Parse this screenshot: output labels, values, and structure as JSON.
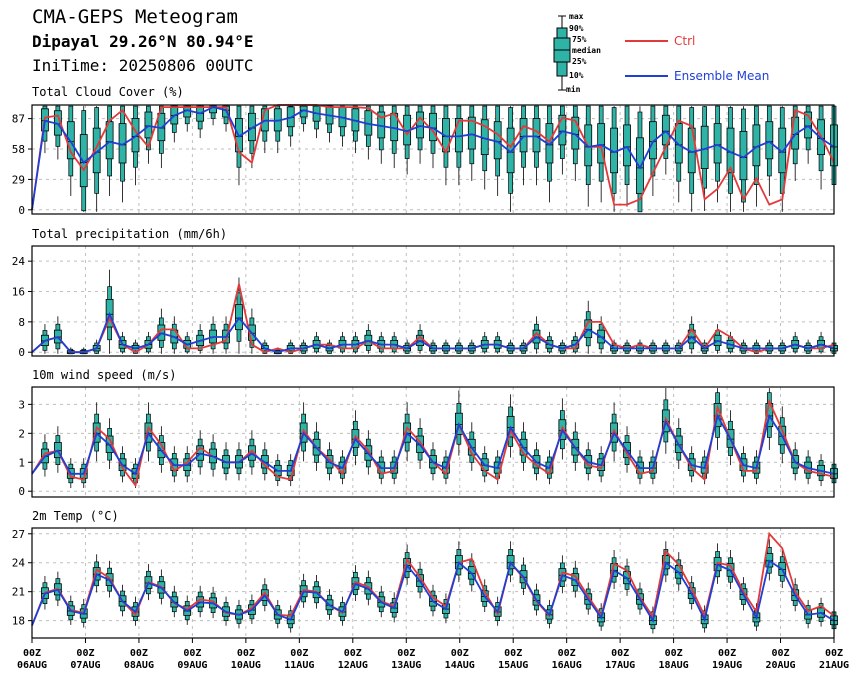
{
  "header": {
    "title": "CMA-GEPS Meteogram",
    "location": "Dipayal 29.26°N 80.94°E",
    "init_time": "IniTime: 20250806 00UTC"
  },
  "legend": {
    "box_labels": [
      "max",
      "90%",
      "75%",
      "median",
      "25%",
      "10%",
      "min"
    ],
    "series": [
      {
        "name": "Ctrl",
        "color": "#e23a3a"
      },
      {
        "name": "Ensemble Mean",
        "color": "#1f3fd6"
      }
    ]
  },
  "x_axis": {
    "hour_label": "00Z",
    "dates": [
      "06AUG",
      "07AUG",
      "08AUG",
      "09AUG",
      "10AUG",
      "11AUG",
      "12AUG",
      "13AUG",
      "14AUG",
      "15AUG",
      "16AUG",
      "17AUG",
      "18AUG",
      "19AUG",
      "20AUG",
      "21AUG"
    ]
  },
  "colors": {
    "box_fill": "#2fb3a7",
    "box_edge": "#000000",
    "grid": "#bfbfbf"
  },
  "chart_data": [
    {
      "type": "line",
      "title": "Total Cloud Cover (%)",
      "yticks": [
        0,
        29,
        58,
        87
      ],
      "ylim": [
        -4,
        100
      ],
      "ctrl": [
        0,
        88,
        90,
        55,
        38,
        60,
        85,
        95,
        75,
        60,
        98,
        98,
        98,
        98,
        98,
        98,
        55,
        45,
        95,
        100,
        100,
        100,
        100,
        98,
        98,
        98,
        97,
        88,
        92,
        72,
        88,
        75,
        55,
        85,
        85,
        80,
        72,
        60,
        80,
        75,
        65,
        88,
        85,
        60,
        60,
        5,
        5,
        10,
        35,
        60,
        85,
        80,
        10,
        20,
        40,
        10,
        30,
        5,
        10,
        95,
        90,
        70,
        45
      ],
      "mean": [
        0,
        85,
        82,
        65,
        45,
        55,
        65,
        62,
        70,
        80,
        78,
        90,
        95,
        92,
        98,
        95,
        70,
        78,
        85,
        85,
        88,
        95,
        92,
        90,
        88,
        85,
        82,
        80,
        78,
        75,
        80,
        78,
        70,
        70,
        72,
        68,
        65,
        55,
        70,
        70,
        62,
        75,
        72,
        60,
        62,
        55,
        60,
        40,
        65,
        75,
        62,
        55,
        58,
        62,
        55,
        50,
        60,
        65,
        55,
        72,
        80,
        68,
        60
      ],
      "box_series": "cloud"
    },
    {
      "type": "line",
      "title": "Total precipitation (mm/6h)",
      "yticks": [
        0,
        8,
        16,
        24
      ],
      "ylim": [
        -1,
        28
      ],
      "ctrl": [
        0,
        3,
        4,
        0,
        0,
        1,
        9,
        2,
        0,
        2,
        6,
        6,
        1,
        1,
        2,
        3,
        18,
        2,
        0,
        1,
        0,
        1,
        2,
        2,
        1,
        1,
        3,
        1,
        1,
        1,
        4,
        1,
        1,
        1,
        1,
        2,
        2,
        1,
        1,
        5,
        2,
        1,
        1,
        8,
        8,
        2,
        1,
        2,
        1,
        1,
        1,
        6,
        1,
        6,
        4,
        1,
        0,
        1,
        1,
        2,
        1,
        1,
        2
      ],
      "mean": [
        0,
        3,
        4,
        0,
        0,
        1,
        10,
        2,
        1,
        2,
        5,
        4,
        2,
        3,
        4,
        4,
        9,
        5,
        1,
        0,
        1,
        1,
        2,
        1,
        2,
        2,
        3,
        2,
        2,
        1,
        3,
        1,
        1,
        1,
        1,
        2,
        2,
        1,
        1,
        4,
        2,
        1,
        2,
        6,
        4,
        1,
        1,
        1,
        1,
        1,
        1,
        4,
        1,
        3,
        2,
        1,
        1,
        1,
        1,
        2,
        1,
        2,
        1
      ],
      "box_series": "precip"
    },
    {
      "type": "line",
      "title": "10m wind speed (m/s)",
      "yticks": [
        0,
        1,
        2,
        3
      ],
      "ylim": [
        -0.2,
        3.6
      ],
      "ctrl": [
        0.6,
        1.3,
        1.4,
        0.5,
        0.4,
        2.2,
        1.8,
        0.8,
        0.2,
        2.2,
        1.6,
        0.7,
        1.0,
        1.5,
        1.2,
        1.0,
        1.0,
        1.4,
        0.9,
        0.5,
        0.4,
        2.1,
        1.5,
        1.1,
        0.6,
        1.9,
        1.4,
        0.6,
        0.7,
        2.2,
        1.7,
        1.0,
        0.6,
        2.3,
        1.3,
        0.7,
        0.4,
        2.1,
        1.3,
        0.9,
        0.6,
        2.2,
        1.5,
        0.9,
        0.8,
        2.1,
        1.3,
        0.6,
        0.7,
        2.5,
        1.6,
        0.8,
        0.4,
        2.9,
        1.8,
        0.7,
        0.7,
        3.1,
        2.1,
        1.0,
        0.7,
        0.6,
        0.5
      ],
      "mean": [
        0.6,
        1.2,
        1.4,
        0.6,
        0.6,
        2.0,
        1.6,
        0.9,
        0.6,
        2.0,
        1.4,
        0.9,
        0.9,
        1.3,
        1.2,
        1.0,
        1.0,
        1.3,
        1.0,
        0.7,
        0.7,
        2.0,
        1.5,
        1.0,
        0.8,
        1.8,
        1.3,
        0.8,
        0.8,
        2.0,
        1.6,
        1.0,
        0.8,
        2.3,
        1.5,
        0.9,
        0.8,
        2.2,
        1.5,
        1.0,
        0.8,
        2.1,
        1.5,
        1.0,
        0.9,
        2.0,
        1.4,
        0.8,
        0.8,
        2.4,
        1.6,
        0.9,
        0.8,
        2.6,
        1.8,
        0.9,
        0.8,
        2.6,
        1.9,
        1.0,
        0.8,
        0.7,
        0.6
      ],
      "box_series": "wind"
    },
    {
      "type": "line",
      "title": "2m Temp (°C)",
      "yticks": [
        18,
        21,
        24,
        27
      ],
      "ylim": [
        16.2,
        27.6
      ],
      "ctrl": [
        17.5,
        20.9,
        21.3,
        19.1,
        18.8,
        23.3,
        22.4,
        20.0,
        18.6,
        22.0,
        21.5,
        19.8,
        19.2,
        20.2,
        20.0,
        18.8,
        18.6,
        19.3,
        20.9,
        18.6,
        18.5,
        21.2,
        21.0,
        19.6,
        18.8,
        22.0,
        21.5,
        20.0,
        19.5,
        24.3,
        22.5,
        20.4,
        19.5,
        24.0,
        24.4,
        21.0,
        18.7,
        24.0,
        22.4,
        20.0,
        18.5,
        23.0,
        22.6,
        20.5,
        18.5,
        23.9,
        23.2,
        20.4,
        18.4,
        25.2,
        23.8,
        21.3,
        18.5,
        24.0,
        23.7,
        21.0,
        18.9,
        27.0,
        25.5,
        21.0,
        19.0,
        19.5,
        18.5
      ],
      "mean": [
        17.5,
        20.8,
        21.2,
        19.0,
        18.7,
        22.8,
        22.2,
        20.0,
        18.9,
        21.9,
        21.4,
        19.9,
        19.0,
        19.9,
        19.8,
        18.9,
        18.6,
        19.1,
        20.6,
        18.6,
        18.1,
        21.0,
        20.9,
        19.6,
        18.9,
        21.8,
        21.3,
        19.9,
        19.3,
        23.7,
        22.1,
        20.0,
        19.2,
        24.0,
        22.9,
        20.5,
        18.9,
        24.0,
        22.5,
        20.1,
        18.6,
        22.7,
        22.2,
        20.2,
        18.3,
        23.2,
        22.4,
        20.2,
        18.0,
        24.0,
        23.0,
        20.8,
        18.1,
        23.8,
        23.2,
        20.7,
        18.3,
        24.2,
        23.3,
        20.6,
        18.6,
        18.8,
        18.0
      ],
      "box_series": "temp"
    }
  ]
}
